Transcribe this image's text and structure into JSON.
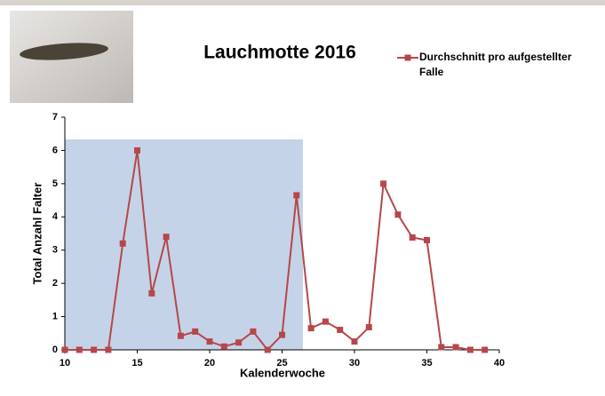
{
  "chart_data": {
    "type": "line",
    "title": "Lauchmotte 2016",
    "x_label": "Kalenderwoche",
    "y_label": "Total Anzahl Falter",
    "x": [
      10,
      11,
      12,
      13,
      14,
      15,
      16,
      17,
      18,
      19,
      20,
      21,
      22,
      23,
      24,
      25,
      26,
      27,
      28,
      29,
      30,
      31,
      32,
      33,
      34,
      35,
      36,
      37,
      38,
      39
    ],
    "series": [
      {
        "name": "Durchschnitt pro aufgestellter Falle",
        "color": "#b5474b",
        "values": [
          0,
          0,
          0,
          0,
          3.2,
          6,
          1.7,
          3.4,
          0.42,
          0.55,
          0.25,
          0.1,
          0.22,
          0.55,
          0,
          0.45,
          4.65,
          0.65,
          0.85,
          0.6,
          0.25,
          0.68,
          5,
          4.07,
          3.38,
          3.3,
          0.08,
          0.08,
          0,
          0
        ]
      }
    ],
    "xlim": [
      10,
      40
    ],
    "xticks": [
      10,
      15,
      20,
      25,
      30,
      35,
      40
    ],
    "ylim": [
      0,
      7
    ],
    "yticks": [
      0,
      1,
      2,
      3,
      4,
      5,
      6,
      7
    ],
    "legend": "top-right"
  }
}
